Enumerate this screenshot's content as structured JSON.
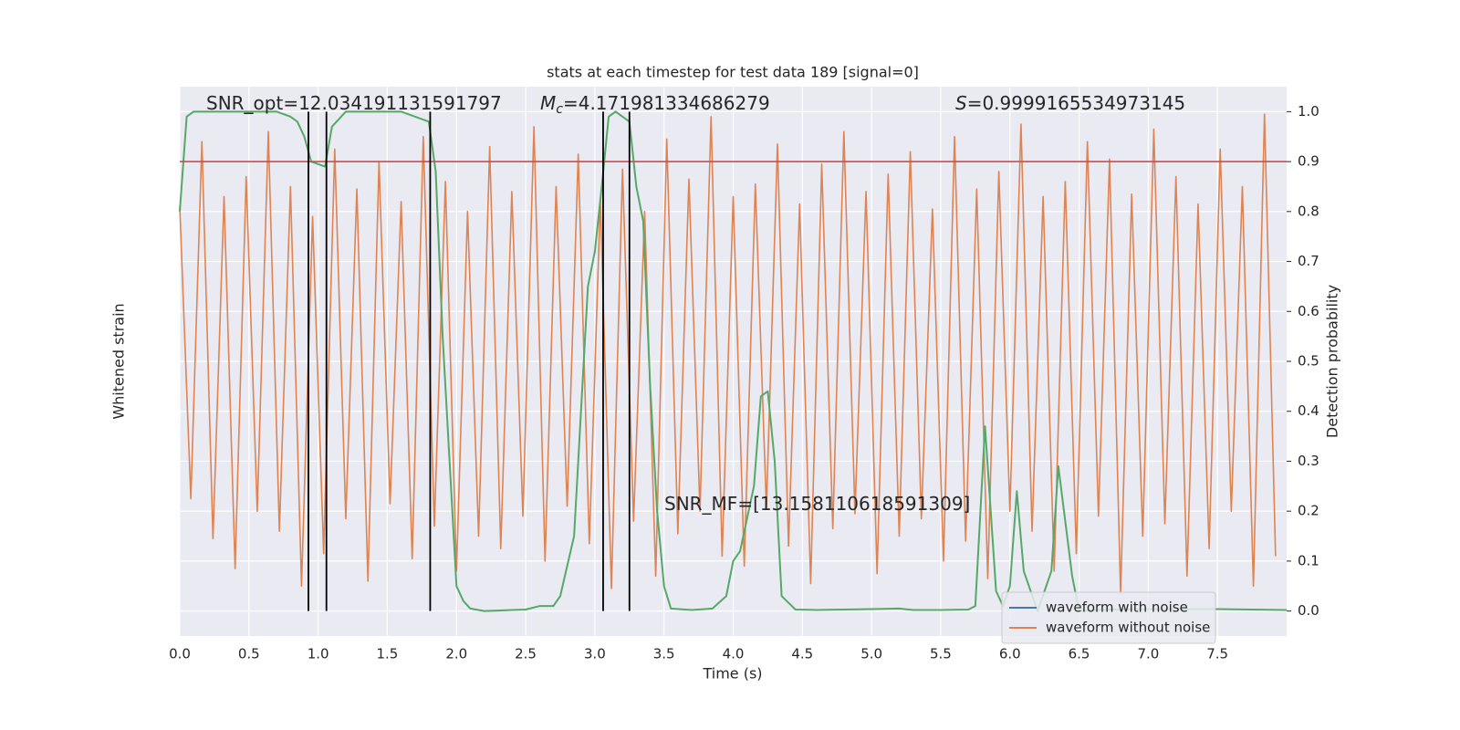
{
  "chart_data": {
    "type": "line",
    "title": "stats at each timestep for test data 189 [signal=0]",
    "xlabel": "Time (s)",
    "ylabel": "Whitened strain",
    "y2label": "Detection probability",
    "xlim": [
      0,
      8.0
    ],
    "xticks": [
      {
        "value": 0,
        "label": "0.0"
      },
      {
        "value": 0.5,
        "label": "0.5"
      },
      {
        "value": 1,
        "label": "1.0"
      },
      {
        "value": 1.5,
        "label": "1.5"
      },
      {
        "value": 2,
        "label": "2.0"
      },
      {
        "value": 2.5,
        "label": "2.5"
      },
      {
        "value": 3,
        "label": "3.0"
      },
      {
        "value": 3.5,
        "label": "3.5"
      },
      {
        "value": 4,
        "label": "4.0"
      },
      {
        "value": 4.5,
        "label": "4.5"
      },
      {
        "value": 5,
        "label": "5.0"
      },
      {
        "value": 5.5,
        "label": "5.5"
      },
      {
        "value": 6,
        "label": "6.0"
      },
      {
        "value": 6.5,
        "label": "6.5"
      },
      {
        "value": 7,
        "label": "7.0"
      },
      {
        "value": 7.5,
        "label": "7.5"
      }
    ],
    "ylim": [
      -1.1,
      1.1
    ],
    "y2lim": [
      -0.05,
      1.05
    ],
    "y2ticks": [
      {
        "value": 0,
        "label": "0.0"
      },
      {
        "value": 0.1,
        "label": "0.1"
      },
      {
        "value": 0.2,
        "label": "0.2"
      },
      {
        "value": 0.3,
        "label": "0.3"
      },
      {
        "value": 0.4,
        "label": "0.4"
      },
      {
        "value": 0.5,
        "label": "0.5"
      },
      {
        "value": 0.6,
        "label": "0.6"
      },
      {
        "value": 0.7,
        "label": "0.7"
      },
      {
        "value": 0.8,
        "label": "0.8"
      },
      {
        "value": 0.9,
        "label": "0.9"
      },
      {
        "value": 1,
        "label": "1.0"
      }
    ],
    "grid": true,
    "legend": "lower right",
    "series": [
      {
        "name": "waveform with noise",
        "color": "#4c72b0",
        "x": [],
        "values": []
      },
      {
        "name": "waveform without noise",
        "color": "#dd8452",
        "x": [
          0,
          0.08,
          0.16,
          0.24,
          0.32,
          0.4,
          0.48,
          0.56,
          0.64,
          0.72,
          0.8,
          0.88,
          0.96,
          1.04,
          1.12,
          1.2,
          1.28,
          1.36,
          1.44,
          1.52,
          1.6,
          1.68,
          1.76,
          1.84,
          1.92,
          2.0,
          2.08,
          2.16,
          2.24,
          2.32,
          2.4,
          2.48,
          2.56,
          2.64,
          2.72,
          2.8,
          2.88,
          2.96,
          3.04,
          3.12,
          3.2,
          3.28,
          3.36,
          3.44,
          3.52,
          3.6,
          3.68,
          3.76,
          3.84,
          3.92,
          4.0,
          4.08,
          4.16,
          4.24,
          4.32,
          4.4,
          4.48,
          4.56,
          4.64,
          4.72,
          4.8,
          4.88,
          4.96,
          5.04,
          5.12,
          5.2,
          5.28,
          5.36,
          5.44,
          5.52,
          5.6,
          5.68,
          5.76,
          5.84,
          5.92,
          6.0,
          6.08,
          6.16,
          6.24,
          6.32,
          6.4,
          6.48,
          6.56,
          6.64,
          6.72,
          6.8,
          6.88,
          6.96,
          7.04,
          7.12,
          7.2,
          7.28,
          7.36,
          7.44,
          7.52,
          7.6,
          7.68,
          7.76,
          7.84,
          7.92
        ],
        "values": [
          0.62,
          -0.55,
          0.88,
          -0.71,
          0.66,
          -0.83,
          0.74,
          -0.6,
          0.92,
          -0.68,
          0.7,
          -0.9,
          0.58,
          -0.77,
          0.85,
          -0.63,
          0.69,
          -0.88,
          0.8,
          -0.57,
          0.64,
          -0.79,
          0.9,
          -0.66,
          0.72,
          -0.84,
          0.6,
          -0.7,
          0.86,
          -0.75,
          0.68,
          -0.62,
          0.94,
          -0.8,
          0.7,
          -0.58,
          0.83,
          -0.73,
          0.65,
          -0.91,
          0.77,
          -0.64,
          0.6,
          -0.86,
          0.89,
          -0.69,
          0.73,
          -0.6,
          0.98,
          -0.78,
          0.66,
          -0.82,
          0.71,
          -0.59,
          0.87,
          -0.74,
          0.63,
          -0.89,
          0.79,
          -0.67,
          0.92,
          -0.61,
          0.68,
          -0.85,
          0.75,
          -0.7,
          0.84,
          -0.63,
          0.61,
          -0.8,
          0.9,
          -0.72,
          0.69,
          -0.87,
          0.76,
          -0.6,
          0.95,
          -0.68,
          0.66,
          -0.84,
          0.72,
          -0.77,
          0.88,
          -0.62,
          0.81,
          -0.93,
          0.67,
          -0.7,
          0.93,
          -0.65,
          0.74,
          -0.86,
          0.63,
          -0.75,
          0.85,
          -0.6,
          0.7,
          -0.9,
          0.99,
          -0.78
        ]
      },
      {
        "color": "#55a868",
        "axis": "y2",
        "x": [
          0,
          0.05,
          0.1,
          0.2,
          0.3,
          0.4,
          0.5,
          0.6,
          0.7,
          0.8,
          0.85,
          0.9,
          0.95,
          1.05,
          1.1,
          1.2,
          1.3,
          1.4,
          1.5,
          1.6,
          1.7,
          1.8,
          1.85,
          1.9,
          1.95,
          2.0,
          2.05,
          2.1,
          2.2,
          2.3,
          2.4,
          2.5,
          2.6,
          2.7,
          2.75,
          2.85,
          2.9,
          2.95,
          3.0,
          3.05,
          3.1,
          3.15,
          3.25,
          3.3,
          3.35,
          3.4,
          3.45,
          3.5,
          3.55,
          3.7,
          3.85,
          3.95,
          4.0,
          4.05,
          4.15,
          4.2,
          4.25,
          4.3,
          4.35,
          4.45,
          4.6,
          4.8,
          5.0,
          5.2,
          5.3,
          5.5,
          5.7,
          5.75,
          5.82,
          5.9,
          5.95,
          6.0,
          6.05,
          6.1,
          6.2,
          6.3,
          6.35,
          6.45,
          6.5,
          6.7,
          7.0,
          7.5,
          8.0
        ],
        "values": [
          0.8,
          0.99,
          1.0,
          1.0,
          1.0,
          1.0,
          1.0,
          1.0,
          1.0,
          0.99,
          0.98,
          0.95,
          0.9,
          0.89,
          0.97,
          1.0,
          1.0,
          1.0,
          1.0,
          1.0,
          0.99,
          0.98,
          0.88,
          0.55,
          0.3,
          0.05,
          0.02,
          0.005,
          0.0,
          0.001,
          0.002,
          0.003,
          0.01,
          0.01,
          0.03,
          0.15,
          0.4,
          0.65,
          0.72,
          0.85,
          0.99,
          1.0,
          0.98,
          0.85,
          0.78,
          0.45,
          0.2,
          0.05,
          0.005,
          0.002,
          0.005,
          0.03,
          0.1,
          0.12,
          0.25,
          0.43,
          0.44,
          0.3,
          0.03,
          0.003,
          0.002,
          0.003,
          0.004,
          0.005,
          0.002,
          0.002,
          0.003,
          0.01,
          0.37,
          0.04,
          0.01,
          0.05,
          0.24,
          0.08,
          0.0,
          0.08,
          0.29,
          0.07,
          0.0,
          0.003,
          0.004,
          0.004,
          0.002
        ]
      }
    ],
    "hline": {
      "value": 0.9,
      "color": "#c44e52",
      "axis": "y2"
    },
    "vlines": {
      "x": [
        0.93,
        1.06,
        1.81,
        3.06,
        3.25
      ],
      "ymin": 0,
      "ymax": 1,
      "color": "#000000",
      "axis": "y2"
    },
    "annotations": [
      {
        "text": "SNR_opt=12.034191131591797"
      },
      {
        "symbol": "M",
        "subscript": "c",
        "text": "=4.171981334686279"
      },
      {
        "symbol": "S",
        "text": "=0.9999165534973145"
      },
      {
        "text": "SNR_MF=[13.158110618591309]"
      }
    ]
  }
}
